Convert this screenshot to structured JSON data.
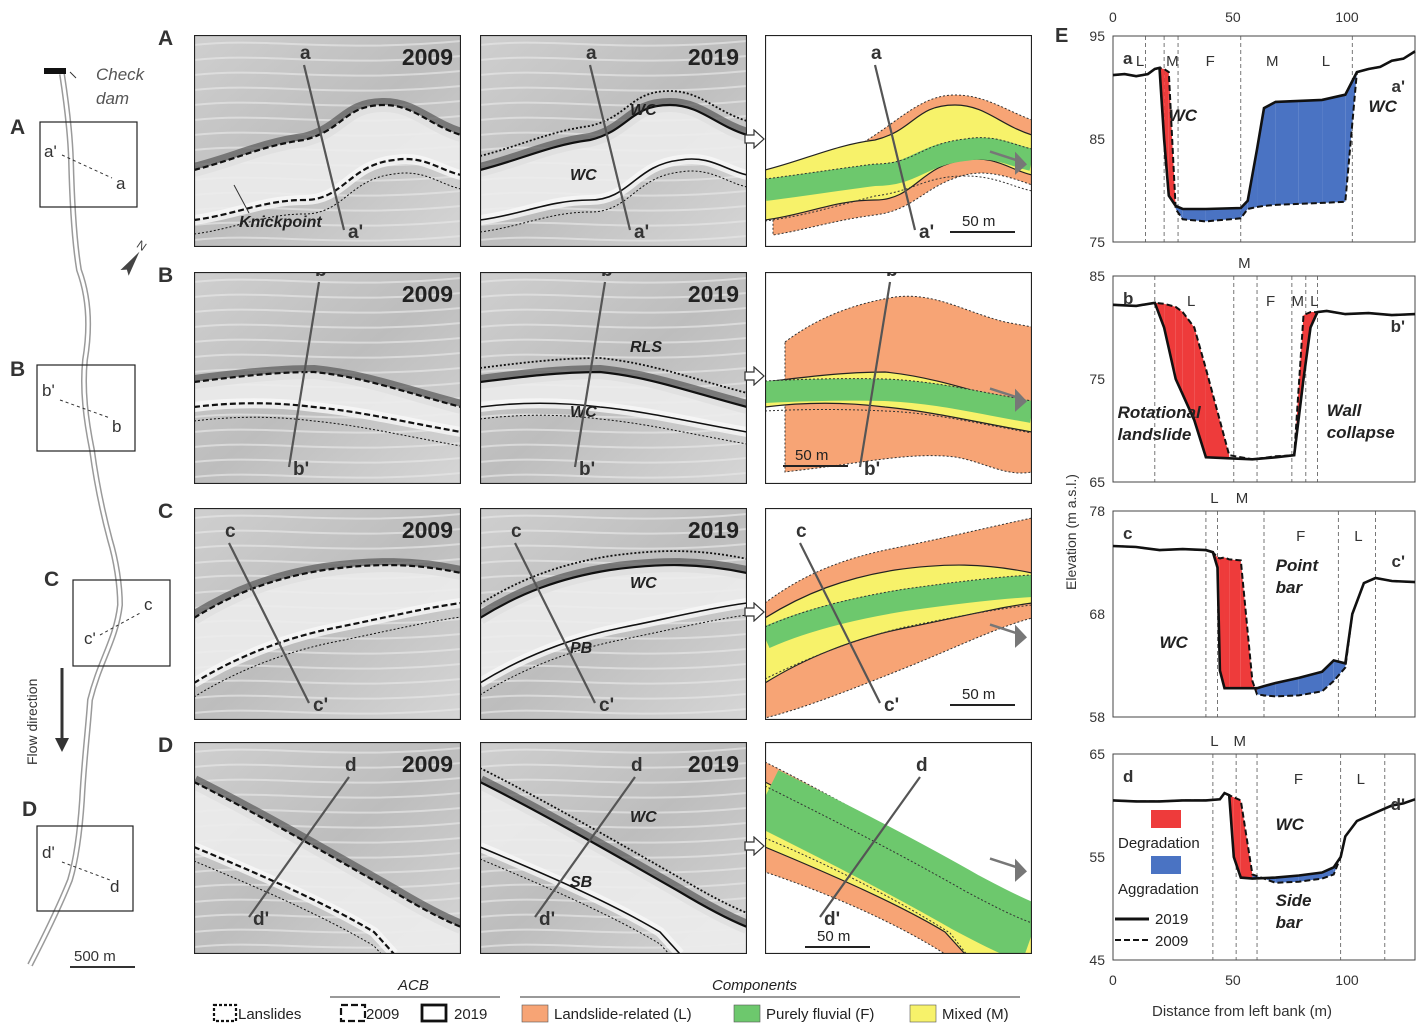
{
  "overview": {
    "box_labels": [
      "A",
      "B",
      "C",
      "D"
    ],
    "check_dam": [
      "Check",
      "dam"
    ],
    "flow_direction": "Flow direction",
    "scale": "500 m",
    "north": "N",
    "section_pairs": [
      [
        "a'",
        "a"
      ],
      [
        "b'",
        "b"
      ],
      [
        "c",
        "c'"
      ],
      [
        "d'",
        "d"
      ]
    ]
  },
  "rows": [
    {
      "label": "A",
      "y2009": "2009",
      "y2019": "2019",
      "start": "a",
      "end": "a'",
      "left_annot": "Knickpoint",
      "mid_annots": [
        "WC",
        "WC"
      ],
      "scale": "50 m"
    },
    {
      "label": "B",
      "y2009": "2009",
      "y2019": "2019",
      "start": "b",
      "end": "b'",
      "mid_annots": [
        "RLS",
        "WC"
      ],
      "scale": "50 m"
    },
    {
      "label": "C",
      "y2009": "2009",
      "y2019": "2019",
      "start": "c",
      "end": "c'",
      "mid_annots": [
        "WC",
        "PB"
      ],
      "scale": "50 m"
    },
    {
      "label": "D",
      "y2009": "2009",
      "y2019": "2019",
      "start": "d",
      "end": "d'",
      "mid_annots": [
        "WC",
        "SB"
      ],
      "scale": "50 m"
    }
  ],
  "legend": {
    "lanslides": "Lanslides",
    "acb_title": "ACB",
    "acb_2009": "2009",
    "acb_2019": "2019",
    "components_title": "Components",
    "landslide": "Landslide-related (L)",
    "fluvial": "Purely fluvial (F)",
    "mixed": "Mixed (M)"
  },
  "colors": {
    "landslide": "#f7a475",
    "fluvial": "#6dc86d",
    "mixed": "#f7f26a",
    "degradation": "#ee3b3b",
    "aggradation": "#4a73c3",
    "hillshade": "#c9c9c9"
  },
  "profile": {
    "panel_label": "E",
    "y_axis_label": "Elevation (m a.s.l.)",
    "x_axis_label": "Distance from left bank (m)",
    "x_ticks_top": [
      "0",
      "50",
      "100"
    ],
    "x_ticks_bottom": [
      "0",
      "50",
      "100"
    ],
    "legend": {
      "degradation": "Degradation",
      "aggradation": "Aggradation",
      "y2019": "2019",
      "y2009": "2009"
    }
  },
  "chart_data": [
    {
      "type": "line",
      "panel": "a",
      "start_label": "a",
      "end_label": "a'",
      "x_range": [
        0,
        130
      ],
      "ylim": [
        75,
        95
      ],
      "y_ticks": [
        "95",
        "85",
        "75"
      ],
      "zones": [
        "L",
        "M",
        "F",
        "M",
        "L"
      ],
      "annotations": [
        "WC",
        "WC"
      ],
      "series": [
        {
          "name": "2019",
          "x": [
            0,
            5,
            10,
            15,
            18,
            20,
            22,
            24,
            27,
            30,
            40,
            55,
            58,
            62,
            65,
            70,
            80,
            90,
            100,
            105,
            110,
            115,
            120,
            125,
            130
          ],
          "y": [
            91.2,
            91.3,
            91.1,
            91.3,
            91.8,
            91.9,
            85,
            79.5,
            78.5,
            78.2,
            78.2,
            78.3,
            79,
            84,
            88,
            88.6,
            88.7,
            88.8,
            89.3,
            91.5,
            91.8,
            92,
            92.6,
            92.8,
            93.5
          ]
        },
        {
          "name": "2009",
          "x": [
            0,
            5,
            10,
            15,
            18,
            20,
            22,
            24,
            27,
            30,
            40,
            55,
            58,
            62,
            65,
            70,
            80,
            90,
            100,
            105,
            110,
            115,
            120,
            125,
            130
          ],
          "y": [
            91.2,
            91.3,
            91.1,
            91.3,
            91.8,
            91.9,
            91.8,
            91.5,
            78.2,
            77.2,
            77,
            77.3,
            78.2,
            78.4,
            78.5,
            78.6,
            78.7,
            78.8,
            78.9,
            91.5,
            91.8,
            92,
            92.6,
            92.8,
            93.5
          ]
        }
      ]
    },
    {
      "type": "line",
      "panel": "b",
      "start_label": "b",
      "end_label": "b'",
      "x_range": [
        0,
        130
      ],
      "ylim": [
        65,
        85
      ],
      "y_ticks": [
        "85",
        "75",
        "65"
      ],
      "zones": [
        "L",
        "M",
        "F",
        "M",
        "L"
      ],
      "annotations": [
        "Rotational landslide",
        "Wall collapse"
      ],
      "series": [
        {
          "name": "2019",
          "x": [
            0,
            10,
            18,
            22,
            27,
            30,
            35,
            40,
            50,
            60,
            70,
            78,
            82,
            85,
            88,
            92,
            100,
            110,
            120,
            130
          ],
          "y": [
            82.2,
            82.1,
            82.4,
            80,
            75,
            73.5,
            71,
            67.4,
            67.3,
            67.2,
            67.4,
            67.6,
            75,
            80,
            81.5,
            81.6,
            81.3,
            81.4,
            81.2,
            81.3
          ]
        },
        {
          "name": "2009",
          "x": [
            0,
            10,
            18,
            22,
            27,
            30,
            35,
            40,
            50,
            60,
            70,
            78,
            82,
            85,
            88,
            92,
            100,
            110,
            120,
            130
          ],
          "y": [
            82.2,
            82.1,
            82.4,
            82.3,
            82,
            81.5,
            80,
            76,
            67.6,
            67.2,
            67.5,
            67.6,
            81.2,
            81.5,
            81.5,
            81.6,
            81.3,
            81.4,
            81.2,
            81.3
          ]
        }
      ]
    },
    {
      "type": "line",
      "panel": "c",
      "start_label": "c",
      "end_label": "c'",
      "x_range": [
        0,
        130
      ],
      "ylim": [
        58,
        78
      ],
      "y_ticks": [
        "78",
        "68",
        "58"
      ],
      "zones": [
        "L",
        "M",
        "F",
        "L"
      ],
      "annotations": [
        "WC",
        "Point bar"
      ],
      "series": [
        {
          "name": "2019",
          "x": [
            0,
            10,
            20,
            30,
            40,
            43,
            45,
            46,
            48,
            50,
            55,
            60,
            62,
            65,
            70,
            80,
            90,
            95,
            100,
            103,
            108,
            113,
            120,
            130
          ],
          "y": [
            74.6,
            74.5,
            74.2,
            74.3,
            74.2,
            74,
            72.5,
            62.5,
            60.8,
            60.8,
            60.8,
            60.8,
            60.8,
            61,
            61.3,
            61.8,
            62.4,
            63.5,
            63.2,
            68,
            71,
            71.5,
            71.2,
            71.1
          ]
        },
        {
          "name": "2009",
          "x": [
            0,
            10,
            20,
            30,
            40,
            43,
            45,
            46,
            48,
            50,
            55,
            60,
            62,
            65,
            70,
            80,
            90,
            95,
            100,
            103,
            108,
            113,
            120,
            130
          ],
          "y": [
            74.6,
            74.5,
            74.2,
            74.3,
            74.2,
            74,
            73.5,
            73.4,
            73.5,
            73.3,
            73.2,
            61.5,
            60.2,
            60.1,
            60,
            60.1,
            60.5,
            61.5,
            62.8,
            68,
            71,
            71.5,
            71.2,
            71.1
          ]
        }
      ]
    },
    {
      "type": "line",
      "panel": "d",
      "start_label": "d",
      "end_label": "d'",
      "x_range": [
        0,
        130
      ],
      "ylim": [
        45,
        65
      ],
      "y_ticks": [
        "65",
        "55",
        "45"
      ],
      "zones": [
        "L",
        "M",
        "F",
        "L"
      ],
      "annotations": [
        "WC",
        "Side bar"
      ],
      "series": [
        {
          "name": "2019",
          "x": [
            0,
            10,
            20,
            30,
            40,
            46,
            48,
            50,
            52,
            55,
            60,
            70,
            80,
            90,
            95,
            98,
            100,
            105,
            110,
            115,
            120,
            125,
            130
          ],
          "y": [
            60.5,
            60.4,
            60.4,
            60.5,
            60.5,
            60.6,
            61.2,
            61,
            55,
            53,
            52.9,
            53,
            53.2,
            53.5,
            54,
            55,
            57,
            58.5,
            59,
            59.5,
            60,
            60.2,
            60.6
          ]
        },
        {
          "name": "2009",
          "x": [
            0,
            10,
            20,
            30,
            40,
            46,
            48,
            50,
            52,
            55,
            60,
            70,
            80,
            90,
            95,
            98,
            100,
            105,
            110,
            115,
            120,
            125,
            130
          ],
          "y": [
            60.5,
            60.4,
            60.4,
            60.5,
            60.5,
            60.6,
            61.2,
            61,
            60.8,
            60.5,
            53.3,
            52.5,
            52.6,
            52.9,
            53.3,
            55,
            57,
            58.5,
            59,
            59.5,
            60,
            60.2,
            60.6
          ]
        }
      ]
    }
  ]
}
